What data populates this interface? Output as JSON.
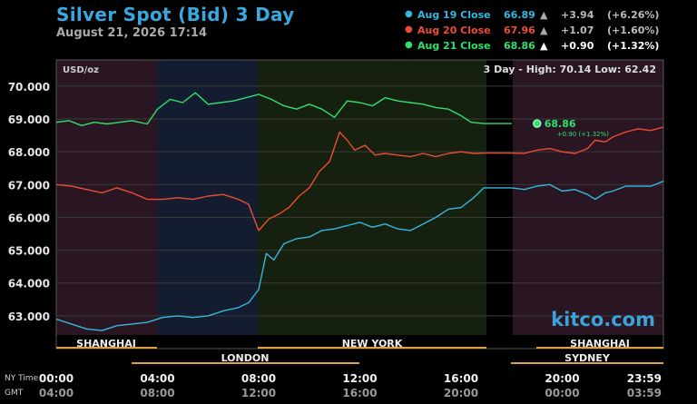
{
  "header": {
    "title": "Silver Spot (Bid) 3 Day",
    "date": "August 21, 2026 17:14"
  },
  "legend": [
    {
      "label": "Aug 19 Close",
      "value": "66.89",
      "arrow": "▲",
      "change": "+3.94",
      "pct": "(+6.26%)",
      "color": "#35b8e0"
    },
    {
      "label": "Aug 20 Close",
      "value": "67.96",
      "arrow": "▲",
      "change": "+1.07",
      "pct": "(+1.60%)",
      "color": "#ee4b35"
    },
    {
      "label": "Aug 21 Close",
      "value": "68.86",
      "arrow": "▲",
      "change": "+0.90",
      "pct": "(+1.32%)",
      "color": "#2fe06e"
    }
  ],
  "plot_info": {
    "unit": "USD/oz",
    "range_text": "3 Day - High: 70.14  Low: 62.42",
    "watermark": "kitco.com",
    "last_value": "68.86",
    "last_change": "+0.90 (+1.32%)"
  },
  "sessions": [
    "SHANGHAI",
    "NEW YORK",
    "SHANGHAI",
    "LONDON",
    "SYDNEY"
  ],
  "time_labels": {
    "ny_label": "NY Time",
    "gmt_label": "GMT",
    "ny": [
      "00:00",
      "04:00",
      "08:00",
      "12:00",
      "16:00",
      "20:00",
      "23:59"
    ],
    "gmt": [
      "04:00",
      "08:00",
      "12:00",
      "16:00",
      "20:00",
      "00:00",
      "03:59"
    ]
  },
  "chart_data": {
    "type": "line",
    "title": "Silver Spot (Bid) 3 Day",
    "ylabel": "USD/oz",
    "ylim": [
      62.0,
      70.8
    ],
    "xlim": [
      0,
      24
    ],
    "yticks": [
      "63.000",
      "64.000",
      "65.000",
      "66.000",
      "67.000",
      "68.000",
      "69.000",
      "70.000"
    ],
    "series": [
      {
        "name": "Aug 19 Close",
        "color": "#35b8e0",
        "points": [
          [
            0,
            62.9
          ],
          [
            0.6,
            62.75
          ],
          [
            1.2,
            62.6
          ],
          [
            1.8,
            62.55
          ],
          [
            2.4,
            62.7
          ],
          [
            3,
            62.75
          ],
          [
            3.6,
            62.8
          ],
          [
            4.2,
            62.95
          ],
          [
            4.8,
            63.0
          ],
          [
            5.4,
            62.95
          ],
          [
            6,
            63.0
          ],
          [
            6.6,
            63.15
          ],
          [
            7.2,
            63.25
          ],
          [
            7.6,
            63.4
          ],
          [
            8.0,
            63.8
          ],
          [
            8.3,
            64.9
          ],
          [
            8.6,
            64.7
          ],
          [
            9.0,
            65.2
          ],
          [
            9.5,
            65.35
          ],
          [
            10.0,
            65.4
          ],
          [
            10.5,
            65.6
          ],
          [
            11.0,
            65.65
          ],
          [
            11.5,
            65.75
          ],
          [
            12.0,
            65.85
          ],
          [
            12.5,
            65.7
          ],
          [
            13.0,
            65.8
          ],
          [
            13.5,
            65.65
          ],
          [
            14.0,
            65.6
          ],
          [
            14.5,
            65.8
          ],
          [
            15.0,
            66.0
          ],
          [
            15.5,
            66.25
          ],
          [
            16.0,
            66.3
          ],
          [
            16.5,
            66.6
          ],
          [
            16.9,
            66.9
          ],
          [
            18.0,
            66.9
          ],
          [
            18.5,
            66.85
          ],
          [
            19.0,
            66.95
          ],
          [
            19.5,
            67.0
          ],
          [
            20.0,
            66.8
          ],
          [
            20.5,
            66.85
          ],
          [
            21.0,
            66.7
          ],
          [
            21.3,
            66.55
          ],
          [
            21.7,
            66.75
          ],
          [
            22.0,
            66.8
          ],
          [
            22.5,
            66.95
          ],
          [
            23.0,
            66.95
          ],
          [
            23.5,
            66.95
          ],
          [
            23.99,
            67.1
          ]
        ]
      },
      {
        "name": "Aug 20 Close",
        "color": "#ee4b35",
        "points": [
          [
            0,
            67.0
          ],
          [
            0.6,
            66.95
          ],
          [
            1.2,
            66.85
          ],
          [
            1.8,
            66.75
          ],
          [
            2.4,
            66.9
          ],
          [
            3,
            66.75
          ],
          [
            3.6,
            66.55
          ],
          [
            4.2,
            66.55
          ],
          [
            4.8,
            66.6
          ],
          [
            5.4,
            66.55
          ],
          [
            6,
            66.65
          ],
          [
            6.6,
            66.7
          ],
          [
            7.2,
            66.55
          ],
          [
            7.6,
            66.4
          ],
          [
            8.0,
            65.6
          ],
          [
            8.4,
            65.95
          ],
          [
            8.8,
            66.1
          ],
          [
            9.2,
            66.3
          ],
          [
            9.6,
            66.65
          ],
          [
            10.0,
            66.9
          ],
          [
            10.4,
            67.4
          ],
          [
            10.8,
            67.7
          ],
          [
            11.2,
            68.6
          ],
          [
            11.5,
            68.35
          ],
          [
            11.8,
            68.05
          ],
          [
            12.2,
            68.2
          ],
          [
            12.6,
            67.9
          ],
          [
            13.0,
            67.95
          ],
          [
            13.5,
            67.9
          ],
          [
            14.0,
            67.85
          ],
          [
            14.5,
            67.95
          ],
          [
            15.0,
            67.85
          ],
          [
            15.5,
            67.95
          ],
          [
            16.0,
            68.0
          ],
          [
            16.5,
            67.95
          ],
          [
            16.9,
            67.96
          ],
          [
            18.0,
            67.96
          ],
          [
            18.5,
            67.95
          ],
          [
            19.0,
            68.05
          ],
          [
            19.5,
            68.1
          ],
          [
            20.0,
            68.0
          ],
          [
            20.5,
            67.95
          ],
          [
            21.0,
            68.1
          ],
          [
            21.3,
            68.35
          ],
          [
            21.7,
            68.3
          ],
          [
            22.0,
            68.45
          ],
          [
            22.5,
            68.6
          ],
          [
            23.0,
            68.7
          ],
          [
            23.5,
            68.65
          ],
          [
            23.99,
            68.75
          ]
        ]
      },
      {
        "name": "Aug 21 Close",
        "color": "#2fe06e",
        "points": [
          [
            0,
            68.9
          ],
          [
            0.5,
            68.95
          ],
          [
            1.0,
            68.8
          ],
          [
            1.5,
            68.9
          ],
          [
            2.0,
            68.85
          ],
          [
            2.5,
            68.9
          ],
          [
            3.0,
            68.95
          ],
          [
            3.6,
            68.85
          ],
          [
            4.0,
            69.3
          ],
          [
            4.5,
            69.6
          ],
          [
            5.0,
            69.5
          ],
          [
            5.5,
            69.8
          ],
          [
            6.0,
            69.45
          ],
          [
            6.5,
            69.5
          ],
          [
            7.0,
            69.55
          ],
          [
            7.5,
            69.65
          ],
          [
            8.0,
            69.75
          ],
          [
            8.5,
            69.6
          ],
          [
            9.0,
            69.4
          ],
          [
            9.5,
            69.3
          ],
          [
            10.0,
            69.45
          ],
          [
            10.5,
            69.3
          ],
          [
            11.0,
            69.05
          ],
          [
            11.5,
            69.55
          ],
          [
            12.0,
            69.5
          ],
          [
            12.5,
            69.4
          ],
          [
            13.0,
            69.65
          ],
          [
            13.5,
            69.55
          ],
          [
            14.0,
            69.5
          ],
          [
            14.5,
            69.45
          ],
          [
            15.0,
            69.35
          ],
          [
            15.5,
            69.3
          ],
          [
            16.0,
            69.1
          ],
          [
            16.4,
            68.9
          ],
          [
            16.9,
            68.86
          ],
          [
            18.0,
            68.86
          ]
        ]
      }
    ]
  }
}
